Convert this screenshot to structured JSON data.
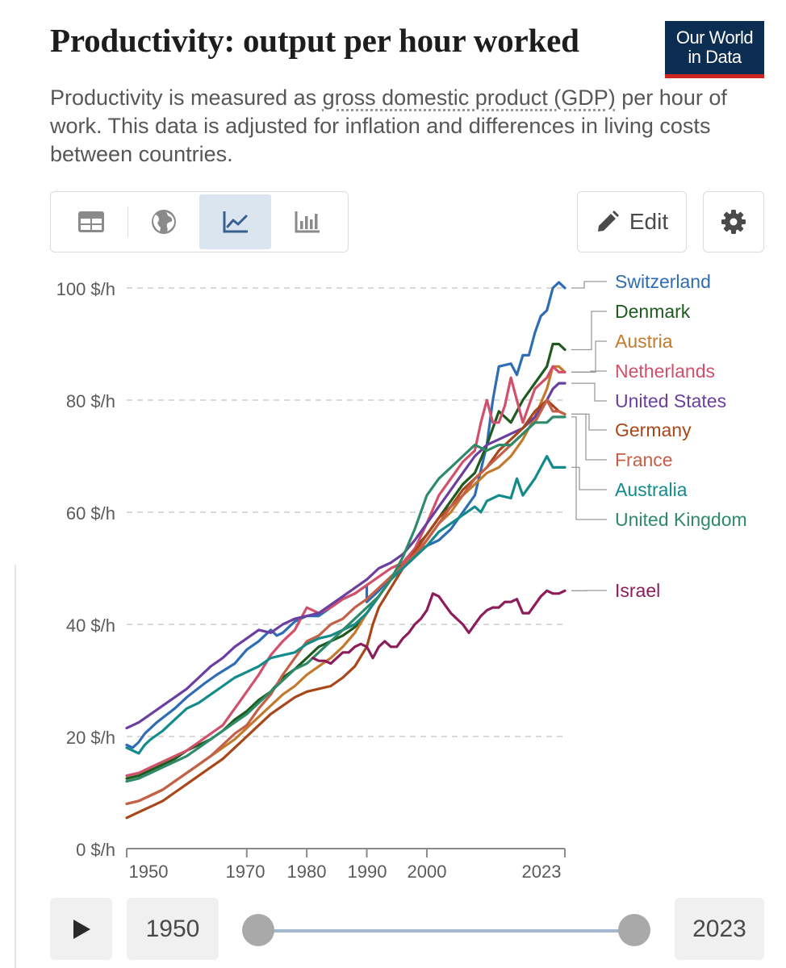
{
  "header": {
    "title": "Productivity: output per hour worked",
    "logo_line1": "Our World",
    "logo_line2": "in Data",
    "subtitle_before": "Productivity is measured as ",
    "subtitle_link": "gross domestic product (GDP)",
    "subtitle_after": " per hour of work. This data is adjusted for inflation and differences in living costs between countries."
  },
  "toolbar": {
    "tabs": [
      {
        "name": "table",
        "icon": "table-icon"
      },
      {
        "name": "map",
        "icon": "globe-icon"
      },
      {
        "name": "line-chart",
        "icon": "line-chart-icon",
        "active": true
      },
      {
        "name": "bar-chart",
        "icon": "bar-chart-icon"
      }
    ],
    "edit_label": "Edit",
    "settings_icon": "gear-icon"
  },
  "timeline": {
    "start_label": "1950",
    "end_label": "2023",
    "start_value": 1950,
    "end_value": 2023,
    "min": 1950,
    "max": 2023
  },
  "chart_data": {
    "type": "line",
    "title": "Productivity: output per hour worked",
    "ylabel": "$/h",
    "xlim": [
      1950,
      2023
    ],
    "ylim": [
      0,
      100
    ],
    "y_ticks": [
      0,
      20,
      40,
      60,
      80,
      100
    ],
    "y_tick_labels": [
      "0 $/h",
      "20 $/h",
      "40 $/h",
      "60 $/h",
      "80 $/h",
      "100 $/h"
    ],
    "x_ticks": [
      1950,
      1970,
      1980,
      1990,
      2000,
      2023
    ],
    "x_tick_labels": [
      "1950",
      "1970",
      "1980",
      "1990",
      "2000",
      "2023"
    ],
    "grid": "horizontal dashed",
    "legend": "right, labels at line ends",
    "series": [
      {
        "name": "Switzerland",
        "color": "#2e6db3",
        "x": [
          1950,
          1951,
          1952,
          1953,
          1955,
          1958,
          1960,
          1963,
          1965,
          1968,
          1970,
          1972,
          1974,
          1975,
          1976,
          1978,
          1980,
          1982,
          1984,
          1986,
          1988,
          1990,
          1990,
          1992,
          1994,
          1996,
          1998,
          2000,
          2002,
          2004,
          2006,
          2008,
          2010,
          2011,
          2012,
          2014,
          2015,
          2016,
          2017,
          2018,
          2019,
          2020,
          2021,
          2022,
          2023
        ],
        "y": [
          18.5,
          18,
          19,
          20.5,
          22.5,
          25,
          27,
          29.5,
          31,
          33,
          35.5,
          37,
          39,
          38,
          38.5,
          40.5,
          41.5,
          41.5,
          43,
          44.5,
          45.5,
          47,
          44,
          46,
          48.5,
          50,
          52.5,
          54,
          55,
          57,
          60,
          63,
          72,
          80,
          86,
          86.5,
          84.5,
          88,
          88,
          92,
          95,
          96,
          100,
          101,
          100
        ]
      },
      {
        "name": "Denmark",
        "color": "#1f5a1f",
        "x": [
          1950,
          1952,
          1954,
          1956,
          1958,
          1960,
          1962,
          1964,
          1966,
          1968,
          1970,
          1972,
          1974,
          1976,
          1978,
          1980,
          1982,
          1984,
          1986,
          1988,
          1990,
          1992,
          1994,
          1996,
          1998,
          2000,
          2002,
          2004,
          2006,
          2008,
          2010,
          2012,
          2014,
          2016,
          2018,
          2020,
          2021,
          2022,
          2023
        ],
        "y": [
          12.5,
          13,
          14,
          15,
          16,
          17.5,
          18.5,
          19.5,
          21,
          23,
          24.5,
          26.5,
          28,
          30.5,
          32,
          34,
          36,
          37,
          38,
          39.5,
          42,
          45,
          48,
          51,
          53.5,
          56,
          59,
          62,
          65,
          67,
          72,
          78,
          76,
          80,
          83,
          86,
          90,
          90,
          89
        ]
      },
      {
        "name": "Austria",
        "color": "#c27a2c",
        "x": [
          1950,
          1952,
          1954,
          1956,
          1958,
          1960,
          1962,
          1964,
          1966,
          1968,
          1970,
          1972,
          1974,
          1976,
          1978,
          1980,
          1982,
          1984,
          1986,
          1988,
          1990,
          1992,
          1994,
          1996,
          1998,
          2000,
          2002,
          2004,
          2006,
          2008,
          2010,
          2012,
          2014,
          2016,
          2018,
          2020,
          2021,
          2022,
          2023
        ],
        "y": [
          8,
          8.5,
          9.5,
          10.5,
          12,
          13.5,
          15,
          16.5,
          18,
          19.5,
          21.5,
          23.5,
          25.5,
          27.5,
          29,
          31,
          32.5,
          34,
          36,
          38.5,
          42,
          45,
          48,
          50,
          52,
          55,
          58,
          60,
          63,
          65,
          67,
          68,
          70,
          73,
          77,
          82,
          86,
          86,
          85
        ]
      },
      {
        "name": "Netherlands",
        "color": "#d1506b",
        "x": [
          1950,
          1952,
          1954,
          1956,
          1958,
          1960,
          1962,
          1964,
          1966,
          1968,
          1970,
          1972,
          1974,
          1976,
          1978,
          1980,
          1982,
          1984,
          1986,
          1988,
          1990,
          1992,
          1994,
          1996,
          1998,
          2000,
          2002,
          2004,
          2006,
          2008,
          2009,
          2010,
          2011,
          2012,
          2013,
          2014,
          2016,
          2018,
          2020,
          2021,
          2022,
          2023
        ],
        "y": [
          13,
          13.5,
          14.5,
          15.5,
          16.5,
          17.5,
          19,
          20.5,
          22,
          25,
          28,
          31,
          34.5,
          37,
          39,
          43,
          42,
          43,
          44.5,
          45.5,
          47,
          48.5,
          50,
          51,
          53.5,
          58,
          63,
          66,
          69,
          71,
          76,
          80,
          76,
          76,
          79,
          84,
          76,
          82,
          84,
          86,
          85,
          85
        ]
      },
      {
        "name": "United States",
        "color": "#6b3fa0",
        "x": [
          1950,
          1952,
          1954,
          1956,
          1958,
          1960,
          1962,
          1964,
          1966,
          1968,
          1970,
          1972,
          1974,
          1976,
          1978,
          1980,
          1982,
          1984,
          1986,
          1988,
          1990,
          1992,
          1994,
          1996,
          1998,
          2000,
          2002,
          2004,
          2006,
          2008,
          2010,
          2012,
          2014,
          2016,
          2018,
          2020,
          2021,
          2022,
          2023
        ],
        "y": [
          21.5,
          22.5,
          24,
          25.5,
          27,
          28.5,
          30.5,
          32.5,
          34,
          36,
          37.5,
          39,
          38.5,
          40,
          41,
          41.5,
          42,
          43.5,
          45,
          46.5,
          48,
          50,
          51,
          52.5,
          55,
          58,
          61,
          64,
          67,
          70,
          72,
          73,
          74,
          75,
          77,
          80,
          82,
          83,
          83
        ]
      },
      {
        "name": "Germany",
        "color": "#a8471a",
        "x": [
          1950,
          1952,
          1954,
          1956,
          1958,
          1960,
          1962,
          1964,
          1966,
          1968,
          1970,
          1972,
          1974,
          1976,
          1978,
          1980,
          1982,
          1984,
          1986,
          1988,
          1990,
          1991,
          1992,
          1994,
          1996,
          1998,
          2000,
          2002,
          2004,
          2006,
          2008,
          2010,
          2012,
          2014,
          2016,
          2018,
          2020,
          2021,
          2022,
          2023
        ],
        "y": [
          5.5,
          6.5,
          7.5,
          8.5,
          10,
          11.5,
          13,
          14.5,
          16,
          18,
          20,
          22,
          24,
          25.5,
          27,
          28,
          28.5,
          29,
          30.5,
          32.5,
          36,
          40,
          43,
          46.5,
          50,
          53,
          56,
          59,
          61,
          64,
          66,
          68,
          71,
          73,
          75,
          78,
          80,
          79,
          78,
          77.5
        ]
      },
      {
        "name": "France",
        "color": "#c46047",
        "x": [
          1950,
          1952,
          1954,
          1956,
          1958,
          1960,
          1962,
          1964,
          1966,
          1968,
          1970,
          1972,
          1974,
          1976,
          1978,
          1980,
          1982,
          1984,
          1986,
          1988,
          1990,
          1992,
          1994,
          1996,
          1998,
          2000,
          2002,
          2004,
          2006,
          2008,
          2010,
          2012,
          2014,
          2016,
          2018,
          2020,
          2021,
          2022,
          2023
        ],
        "y": [
          8,
          8.5,
          9.5,
          10.5,
          12,
          13.5,
          15,
          16.5,
          18.5,
          20.5,
          22,
          25,
          27.5,
          31,
          34,
          37,
          38,
          40,
          41,
          43,
          44.5,
          46.5,
          48.5,
          50.5,
          52.5,
          55,
          58,
          61,
          63,
          66,
          68,
          70,
          72,
          74,
          76,
          80,
          78,
          78,
          77.5
        ]
      },
      {
        "name": "Australia",
        "color": "#138b8b",
        "x": [
          1950,
          1951,
          1952,
          1953,
          1954,
          1956,
          1958,
          1960,
          1962,
          1964,
          1966,
          1968,
          1970,
          1972,
          1974,
          1976,
          1978,
          1980,
          1982,
          1984,
          1986,
          1988,
          1990,
          1992,
          1994,
          1996,
          1998,
          2000,
          2002,
          2004,
          2006,
          2008,
          2009,
          2010,
          2012,
          2014,
          2015,
          2016,
          2018,
          2020,
          2021,
          2022,
          2023
        ],
        "y": [
          18,
          17.5,
          17,
          18.5,
          19.5,
          21,
          23,
          25,
          26,
          27.5,
          29,
          30.5,
          31.5,
          32.5,
          34,
          34.5,
          35,
          36.5,
          37.5,
          38,
          39,
          40,
          42,
          45,
          48,
          50,
          52,
          54,
          56.5,
          58,
          59.5,
          61,
          60,
          62,
          63,
          62.5,
          66,
          63,
          66,
          70,
          68,
          68,
          68
        ]
      },
      {
        "name": "United Kingdom",
        "color": "#2e8a68",
        "x": [
          1950,
          1952,
          1954,
          1956,
          1958,
          1960,
          1962,
          1964,
          1966,
          1968,
          1970,
          1972,
          1974,
          1976,
          1978,
          1980,
          1982,
          1984,
          1986,
          1988,
          1990,
          1992,
          1994,
          1996,
          1998,
          2000,
          2002,
          2004,
          2006,
          2008,
          2010,
          2012,
          2014,
          2016,
          2018,
          2020,
          2021,
          2022,
          2023
        ],
        "y": [
          12,
          12.5,
          13.5,
          14.5,
          15.5,
          16.5,
          18,
          19.5,
          21,
          22.5,
          24,
          26,
          28,
          30,
          32,
          33,
          35,
          37,
          39,
          41,
          43,
          45,
          48,
          52,
          57,
          63,
          66,
          68,
          70,
          72,
          71,
          72,
          72,
          74,
          76,
          76,
          77,
          77,
          77
        ]
      },
      {
        "name": "Israel",
        "color": "#8c1c5a",
        "x": [
          1981,
          1982,
          1983,
          1984,
          1985,
          1986,
          1987,
          1988,
          1989,
          1990,
          1991,
          1992,
          1993,
          1994,
          1995,
          1996,
          1997,
          1998,
          1999,
          2000,
          2001,
          2002,
          2003,
          2004,
          2005,
          2006,
          2007,
          2008,
          2009,
          2010,
          2011,
          2012,
          2013,
          2014,
          2015,
          2016,
          2017,
          2018,
          2019,
          2020,
          2021,
          2022,
          2023
        ],
        "y": [
          34,
          33.5,
          33.5,
          33,
          34,
          35,
          35,
          36,
          36.5,
          36,
          34,
          36,
          37,
          36,
          36,
          37.5,
          38.5,
          40,
          41,
          42.5,
          45.5,
          45,
          43.5,
          42,
          41,
          40,
          38.5,
          40,
          41.5,
          42.5,
          43,
          43,
          44,
          44,
          44.5,
          42,
          42,
          43.5,
          45,
          46,
          45.5,
          45.5,
          46
        ]
      }
    ]
  }
}
